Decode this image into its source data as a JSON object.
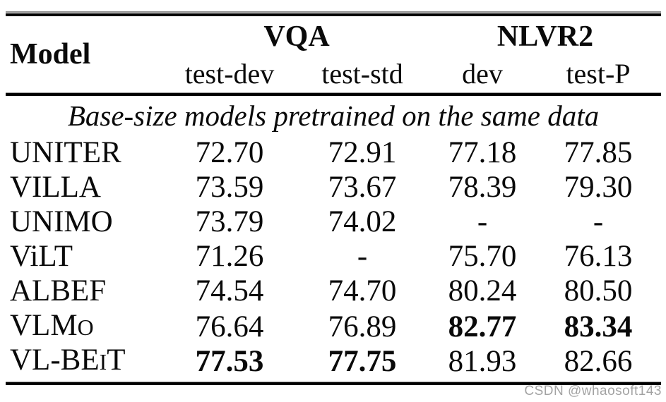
{
  "table": {
    "header": {
      "model_label": "Model",
      "groups": [
        {
          "label": "VQA",
          "subcols": [
            "test-dev",
            "test-std"
          ]
        },
        {
          "label": "NLVR2",
          "subcols": [
            "dev",
            "test-P"
          ]
        }
      ]
    },
    "section_title": "Base-size models pretrained on the same data",
    "rows": [
      {
        "model": [
          {
            "t": "UNITER"
          }
        ],
        "values": [
          {
            "t": "72.70"
          },
          {
            "t": "72.91"
          },
          {
            "t": "77.18"
          },
          {
            "t": "77.85"
          }
        ]
      },
      {
        "model": [
          {
            "t": "VILLA"
          }
        ],
        "values": [
          {
            "t": "73.59"
          },
          {
            "t": "73.67"
          },
          {
            "t": "78.39"
          },
          {
            "t": "79.30"
          }
        ]
      },
      {
        "model": [
          {
            "t": "UNIMO"
          }
        ],
        "values": [
          {
            "t": "73.79"
          },
          {
            "t": "74.02"
          },
          {
            "t": "-"
          },
          {
            "t": "-"
          }
        ]
      },
      {
        "model": [
          {
            "t": "ViLT"
          }
        ],
        "values": [
          {
            "t": "71.26"
          },
          {
            "t": "-"
          },
          {
            "t": "75.70"
          },
          {
            "t": "76.13"
          }
        ]
      },
      {
        "model": [
          {
            "t": "ALBEF"
          }
        ],
        "values": [
          {
            "t": "74.54"
          },
          {
            "t": "74.70"
          },
          {
            "t": "80.24"
          },
          {
            "t": "80.50"
          }
        ]
      },
      {
        "model": [
          {
            "t": "VLM"
          },
          {
            "t": "O",
            "sc": true
          }
        ],
        "values": [
          {
            "t": "76.64"
          },
          {
            "t": "76.89"
          },
          {
            "t": "82.77",
            "b": true
          },
          {
            "t": "83.34",
            "b": true
          }
        ]
      },
      {
        "model": [
          {
            "t": "VL-BE"
          },
          {
            "t": "I",
            "sc": true
          },
          {
            "t": "T"
          }
        ],
        "values": [
          {
            "t": "77.53",
            "b": true
          },
          {
            "t": "77.75",
            "b": true
          },
          {
            "t": "81.93"
          },
          {
            "t": "82.66"
          }
        ]
      }
    ]
  },
  "watermark": "CSDN @whaosoft143"
}
